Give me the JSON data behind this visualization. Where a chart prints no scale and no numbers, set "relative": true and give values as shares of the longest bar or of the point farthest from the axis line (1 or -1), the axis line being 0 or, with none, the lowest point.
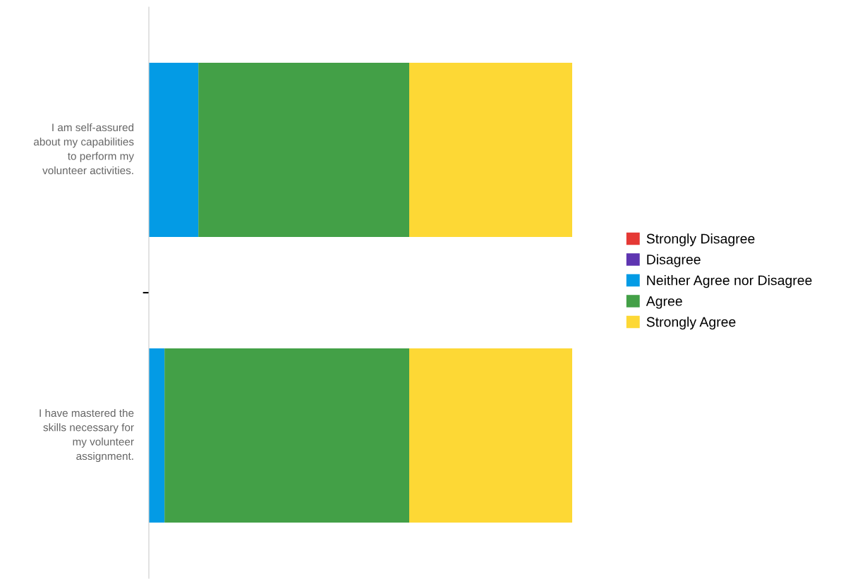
{
  "chart_data": {
    "type": "bar",
    "orientation": "horizontal",
    "stacked": true,
    "relative": true,
    "legend": "right",
    "grid": false,
    "categories": [
      "I am self-assured\nabout my capabilities\nto perform my\nvolunteer activities.",
      "I have mastered the\nskills necessary for\nmy volunteer\nassignment."
    ],
    "series": [
      {
        "name": "Strongly Disagree",
        "color": "#e53935",
        "values": [
          0,
          0
        ]
      },
      {
        "name": "Disagree",
        "color": "#5e35b1",
        "values": [
          0,
          0
        ]
      },
      {
        "name": "Neither Agree nor Disagree",
        "color": "#039be5",
        "values": [
          0.117,
          0.037
        ]
      },
      {
        "name": "Agree",
        "color": "#43a047",
        "values": [
          0.498,
          0.578
        ]
      },
      {
        "name": "Strongly Agree",
        "color": "#fdd835",
        "values": [
          0.385,
          0.385
        ]
      }
    ]
  }
}
